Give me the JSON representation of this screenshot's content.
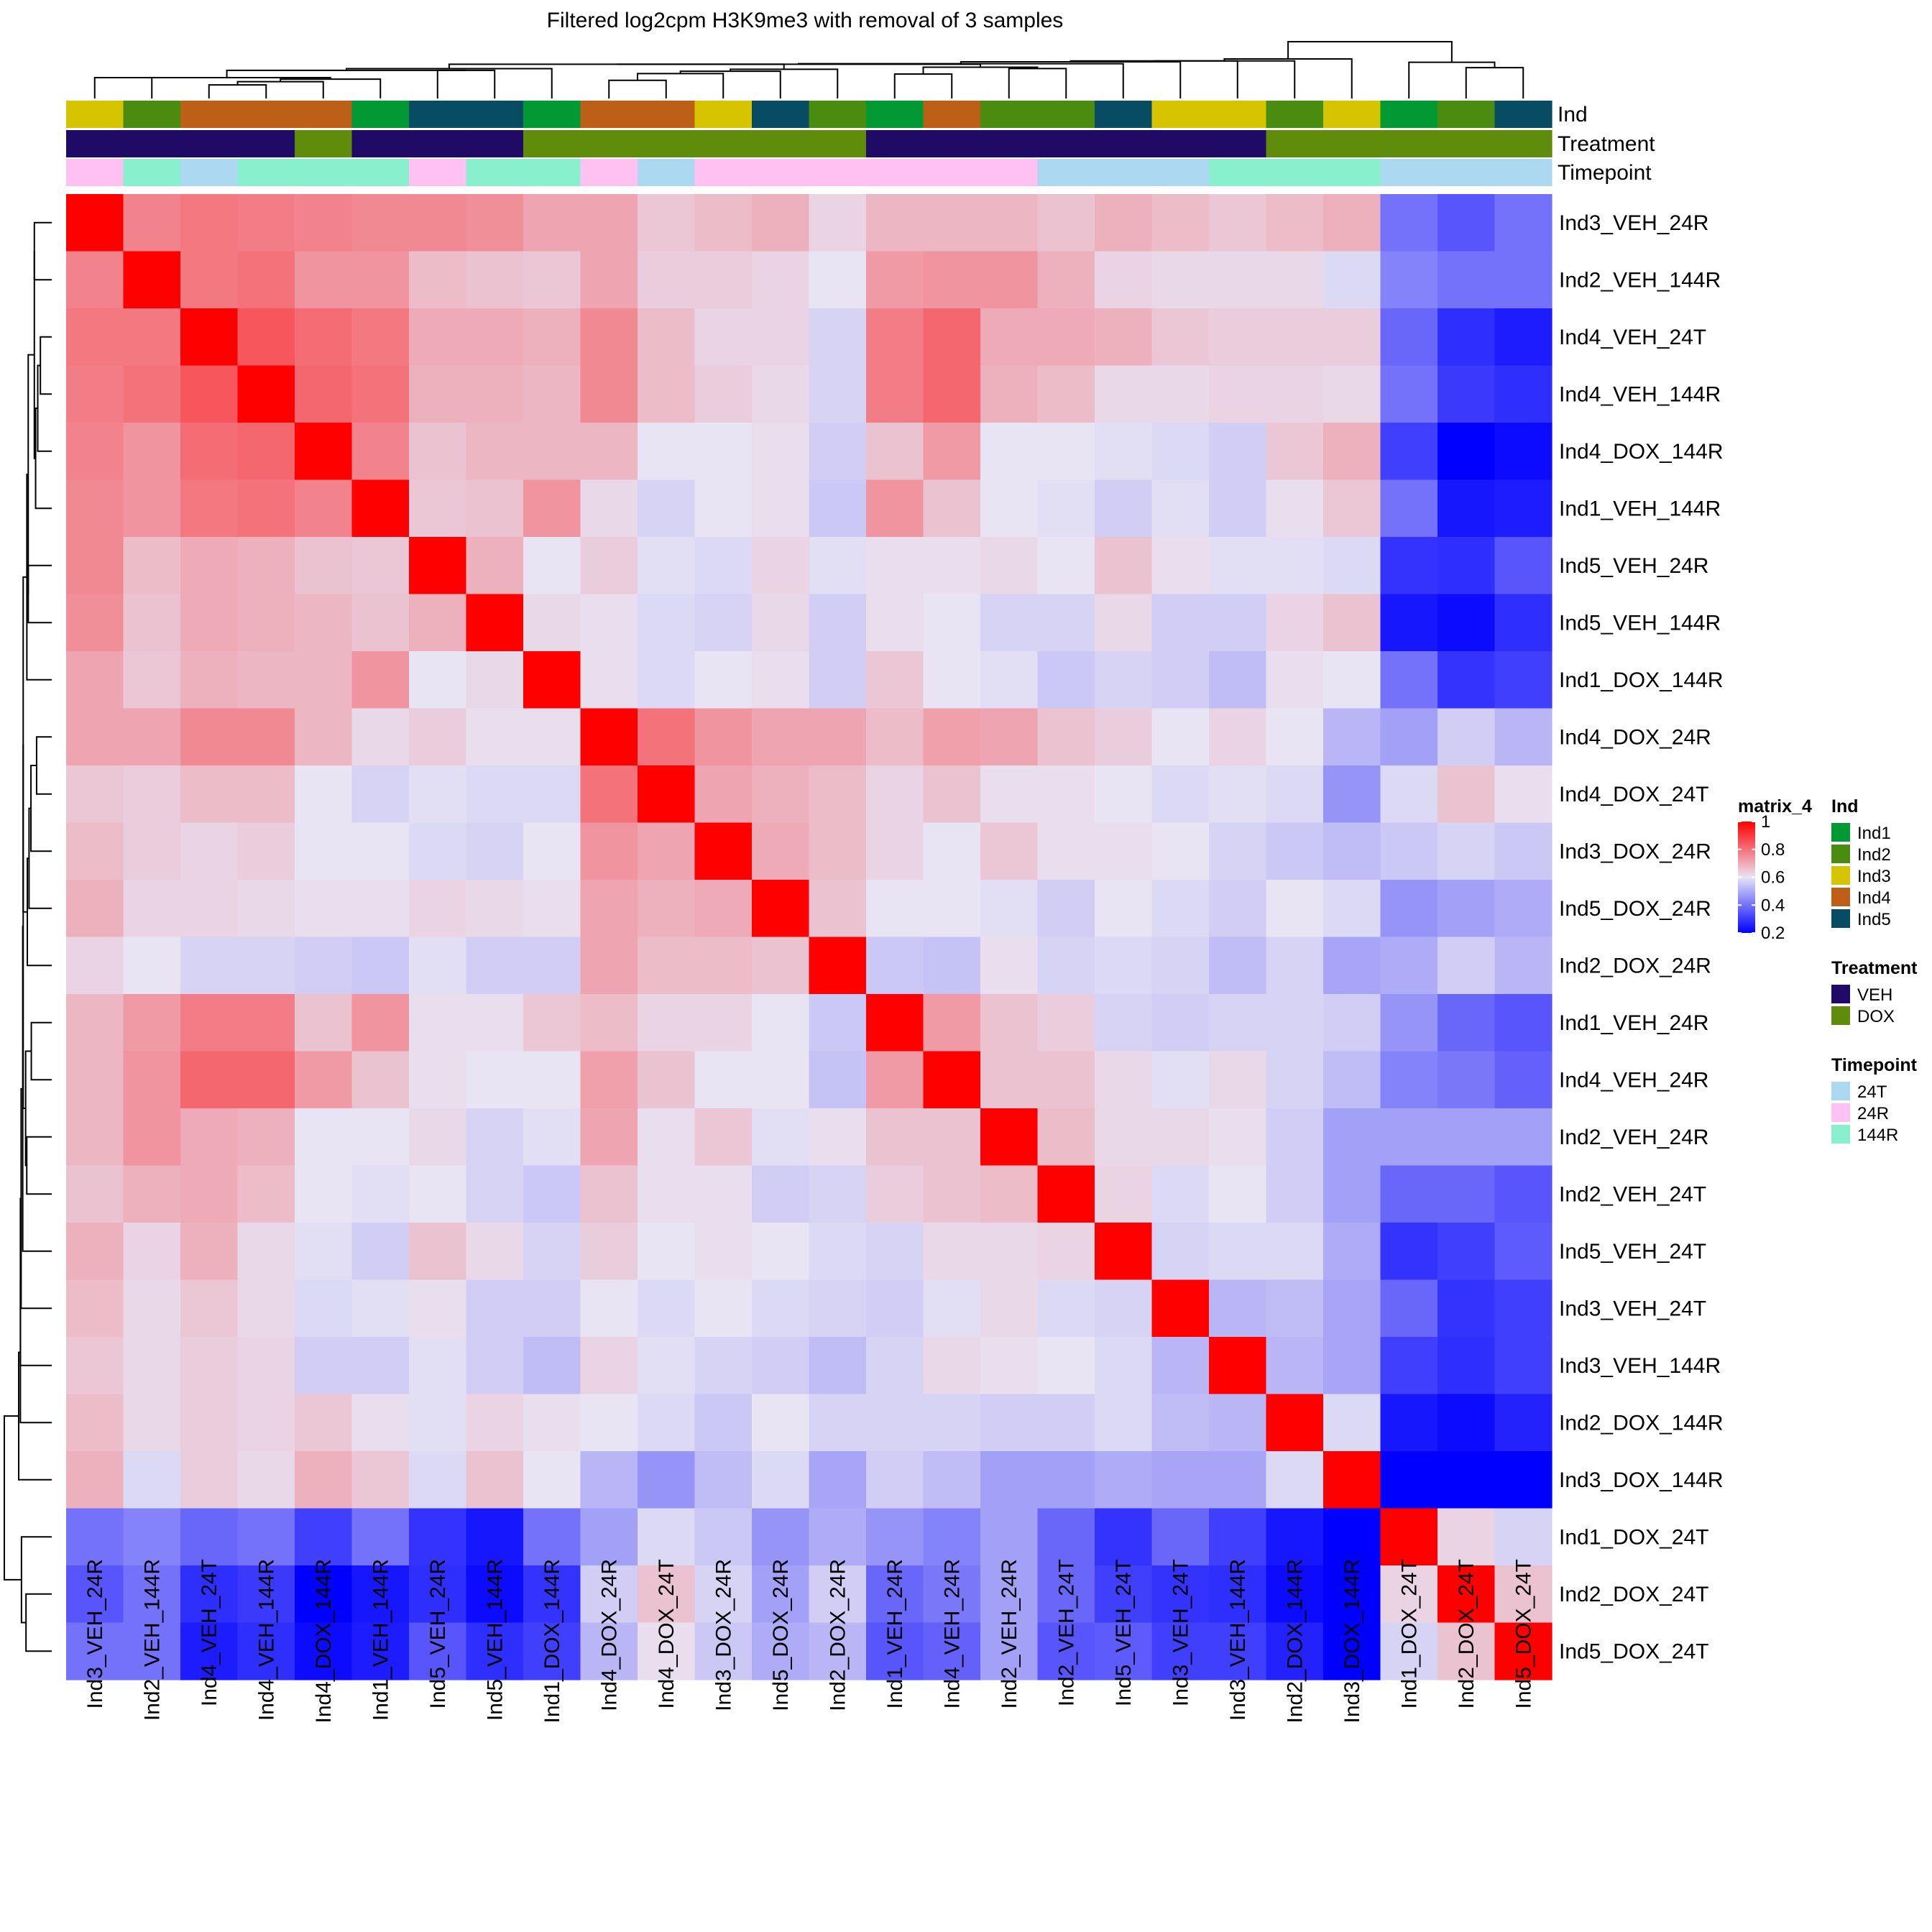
{
  "chart_data": {
    "type": "heatmap",
    "title": "Filtered log2cpm H3K9me3 with removal of 3 samples",
    "samples": [
      "Ind3_VEH_24R",
      "Ind2_VEH_144R",
      "Ind4_VEH_24T",
      "Ind4_VEH_144R",
      "Ind4_DOX_144R",
      "Ind1_VEH_144R",
      "Ind5_VEH_24R",
      "Ind5_VEH_144R",
      "Ind1_DOX_144R",
      "Ind4_DOX_24R",
      "Ind4_DOX_24T",
      "Ind3_DOX_24R",
      "Ind5_DOX_24R",
      "Ind2_DOX_24R",
      "Ind1_VEH_24R",
      "Ind4_VEH_24R",
      "Ind2_VEH_24R",
      "Ind2_VEH_24T",
      "Ind5_VEH_24T",
      "Ind3_VEH_24T",
      "Ind3_VEH_144R",
      "Ind2_DOX_144R",
      "Ind3_DOX_144R",
      "Ind1_DOX_24T",
      "Ind2_DOX_24T",
      "Ind5_DOX_24T"
    ],
    "values": [
      [
        1.0,
        0.77,
        0.79,
        0.78,
        0.77,
        0.76,
        0.76,
        0.75,
        0.71,
        0.71,
        0.65,
        0.67,
        0.69,
        0.63,
        0.68,
        0.68,
        0.68,
        0.66,
        0.69,
        0.67,
        0.65,
        0.67,
        0.69,
        0.4,
        0.35,
        0.4
      ],
      [
        0.77,
        1.0,
        0.79,
        0.8,
        0.74,
        0.74,
        0.67,
        0.66,
        0.65,
        0.71,
        0.64,
        0.64,
        0.63,
        0.6,
        0.73,
        0.74,
        0.74,
        0.69,
        0.63,
        0.62,
        0.62,
        0.62,
        0.58,
        0.43,
        0.4,
        0.4
      ],
      [
        0.79,
        0.79,
        1.0,
        0.85,
        0.81,
        0.79,
        0.7,
        0.7,
        0.69,
        0.76,
        0.67,
        0.63,
        0.63,
        0.57,
        0.78,
        0.82,
        0.7,
        0.7,
        0.69,
        0.65,
        0.64,
        0.64,
        0.64,
        0.38,
        0.28,
        0.25
      ],
      [
        0.78,
        0.8,
        0.85,
        1.0,
        0.82,
        0.8,
        0.69,
        0.69,
        0.68,
        0.76,
        0.67,
        0.64,
        0.62,
        0.57,
        0.78,
        0.82,
        0.69,
        0.67,
        0.62,
        0.62,
        0.63,
        0.63,
        0.62,
        0.4,
        0.3,
        0.28
      ],
      [
        0.77,
        0.74,
        0.81,
        0.82,
        1.0,
        0.77,
        0.66,
        0.68,
        0.68,
        0.68,
        0.6,
        0.6,
        0.61,
        0.56,
        0.66,
        0.73,
        0.6,
        0.6,
        0.59,
        0.58,
        0.56,
        0.65,
        0.69,
        0.31,
        0.2,
        0.22
      ],
      [
        0.76,
        0.74,
        0.79,
        0.8,
        0.77,
        1.0,
        0.65,
        0.66,
        0.74,
        0.62,
        0.57,
        0.6,
        0.61,
        0.55,
        0.74,
        0.66,
        0.6,
        0.59,
        0.56,
        0.59,
        0.56,
        0.61,
        0.65,
        0.4,
        0.24,
        0.25
      ],
      [
        0.76,
        0.67,
        0.7,
        0.69,
        0.66,
        0.65,
        1.0,
        0.69,
        0.6,
        0.64,
        0.59,
        0.58,
        0.63,
        0.59,
        0.61,
        0.61,
        0.62,
        0.6,
        0.66,
        0.61,
        0.59,
        0.59,
        0.58,
        0.29,
        0.28,
        0.35
      ],
      [
        0.75,
        0.66,
        0.7,
        0.69,
        0.68,
        0.66,
        0.69,
        1.0,
        0.62,
        0.61,
        0.58,
        0.57,
        0.62,
        0.56,
        0.61,
        0.6,
        0.57,
        0.57,
        0.62,
        0.56,
        0.56,
        0.63,
        0.66,
        0.24,
        0.22,
        0.28
      ],
      [
        0.71,
        0.65,
        0.69,
        0.68,
        0.68,
        0.74,
        0.6,
        0.62,
        1.0,
        0.61,
        0.58,
        0.6,
        0.61,
        0.56,
        0.65,
        0.6,
        0.59,
        0.55,
        0.57,
        0.56,
        0.53,
        0.61,
        0.6,
        0.4,
        0.29,
        0.31
      ],
      [
        0.71,
        0.71,
        0.76,
        0.76,
        0.68,
        0.62,
        0.64,
        0.61,
        0.61,
        1.0,
        0.8,
        0.74,
        0.71,
        0.71,
        0.67,
        0.72,
        0.71,
        0.66,
        0.64,
        0.6,
        0.63,
        0.6,
        0.52,
        0.48,
        0.56,
        0.52
      ],
      [
        0.65,
        0.64,
        0.67,
        0.67,
        0.6,
        0.57,
        0.59,
        0.58,
        0.58,
        0.8,
        1.0,
        0.71,
        0.69,
        0.67,
        0.63,
        0.66,
        0.61,
        0.61,
        0.6,
        0.58,
        0.59,
        0.58,
        0.46,
        0.58,
        0.66,
        0.61
      ],
      [
        0.67,
        0.64,
        0.63,
        0.64,
        0.6,
        0.6,
        0.58,
        0.57,
        0.6,
        0.74,
        0.71,
        1.0,
        0.7,
        0.67,
        0.63,
        0.6,
        0.65,
        0.61,
        0.61,
        0.6,
        0.57,
        0.55,
        0.53,
        0.55,
        0.57,
        0.55
      ],
      [
        0.69,
        0.63,
        0.63,
        0.62,
        0.61,
        0.61,
        0.63,
        0.62,
        0.61,
        0.71,
        0.69,
        0.7,
        1.0,
        0.66,
        0.6,
        0.6,
        0.59,
        0.56,
        0.6,
        0.58,
        0.56,
        0.6,
        0.58,
        0.46,
        0.48,
        0.5
      ],
      [
        0.63,
        0.6,
        0.57,
        0.57,
        0.56,
        0.55,
        0.59,
        0.56,
        0.56,
        0.71,
        0.67,
        0.67,
        0.66,
        1.0,
        0.55,
        0.54,
        0.61,
        0.57,
        0.58,
        0.57,
        0.53,
        0.57,
        0.49,
        0.5,
        0.56,
        0.52
      ],
      [
        0.68,
        0.73,
        0.78,
        0.78,
        0.66,
        0.74,
        0.61,
        0.61,
        0.65,
        0.67,
        0.63,
        0.63,
        0.6,
        0.55,
        1.0,
        0.73,
        0.66,
        0.64,
        0.57,
        0.56,
        0.57,
        0.57,
        0.56,
        0.46,
        0.38,
        0.35
      ],
      [
        0.68,
        0.74,
        0.82,
        0.82,
        0.73,
        0.66,
        0.61,
        0.6,
        0.6,
        0.72,
        0.66,
        0.6,
        0.6,
        0.54,
        0.73,
        1.0,
        0.66,
        0.66,
        0.62,
        0.59,
        0.62,
        0.57,
        0.53,
        0.43,
        0.41,
        0.37
      ],
      [
        0.68,
        0.74,
        0.7,
        0.69,
        0.6,
        0.6,
        0.62,
        0.57,
        0.59,
        0.71,
        0.61,
        0.65,
        0.59,
        0.61,
        0.66,
        0.66,
        1.0,
        0.67,
        0.62,
        0.62,
        0.61,
        0.56,
        0.48,
        0.48,
        0.48,
        0.48
      ],
      [
        0.66,
        0.69,
        0.7,
        0.67,
        0.6,
        0.59,
        0.6,
        0.57,
        0.55,
        0.66,
        0.61,
        0.61,
        0.56,
        0.57,
        0.64,
        0.66,
        0.67,
        1.0,
        0.63,
        0.58,
        0.6,
        0.56,
        0.48,
        0.38,
        0.38,
        0.35
      ],
      [
        0.69,
        0.63,
        0.69,
        0.62,
        0.59,
        0.56,
        0.66,
        0.62,
        0.57,
        0.64,
        0.6,
        0.61,
        0.6,
        0.58,
        0.57,
        0.62,
        0.62,
        0.63,
        1.0,
        0.57,
        0.58,
        0.58,
        0.5,
        0.29,
        0.31,
        0.36
      ],
      [
        0.67,
        0.62,
        0.65,
        0.62,
        0.58,
        0.59,
        0.61,
        0.56,
        0.56,
        0.6,
        0.58,
        0.6,
        0.58,
        0.57,
        0.56,
        0.59,
        0.62,
        0.58,
        0.57,
        1.0,
        0.52,
        0.53,
        0.49,
        0.38,
        0.29,
        0.31
      ],
      [
        0.65,
        0.62,
        0.64,
        0.63,
        0.56,
        0.56,
        0.59,
        0.56,
        0.53,
        0.63,
        0.59,
        0.57,
        0.56,
        0.53,
        0.57,
        0.62,
        0.61,
        0.6,
        0.58,
        0.52,
        1.0,
        0.52,
        0.49,
        0.31,
        0.28,
        0.31
      ],
      [
        0.67,
        0.62,
        0.64,
        0.63,
        0.65,
        0.61,
        0.59,
        0.63,
        0.61,
        0.6,
        0.58,
        0.55,
        0.6,
        0.57,
        0.57,
        0.57,
        0.56,
        0.56,
        0.58,
        0.53,
        0.52,
        1.0,
        0.58,
        0.24,
        0.22,
        0.26
      ],
      [
        0.69,
        0.58,
        0.64,
        0.62,
        0.69,
        0.65,
        0.58,
        0.66,
        0.6,
        0.52,
        0.46,
        0.53,
        0.58,
        0.49,
        0.56,
        0.53,
        0.48,
        0.48,
        0.5,
        0.49,
        0.49,
        0.58,
        1.0,
        0.2,
        0.2,
        0.2
      ],
      [
        0.4,
        0.43,
        0.38,
        0.4,
        0.31,
        0.4,
        0.29,
        0.24,
        0.4,
        0.48,
        0.58,
        0.55,
        0.46,
        0.5,
        0.46,
        0.43,
        0.48,
        0.38,
        0.29,
        0.38,
        0.31,
        0.24,
        0.2,
        1.0,
        0.63,
        0.57
      ],
      [
        0.35,
        0.4,
        0.28,
        0.3,
        0.2,
        0.24,
        0.28,
        0.22,
        0.29,
        0.56,
        0.66,
        0.57,
        0.48,
        0.56,
        0.38,
        0.41,
        0.48,
        0.38,
        0.31,
        0.29,
        0.28,
        0.22,
        0.2,
        0.63,
        1.0,
        0.66
      ],
      [
        0.4,
        0.4,
        0.25,
        0.28,
        0.22,
        0.25,
        0.35,
        0.28,
        0.31,
        0.52,
        0.61,
        0.55,
        0.5,
        0.52,
        0.35,
        0.37,
        0.48,
        0.35,
        0.36,
        0.31,
        0.31,
        0.26,
        0.2,
        0.57,
        0.66,
        1.0
      ]
    ],
    "annotations": {
      "Ind": [
        "Ind3",
        "Ind2",
        "Ind4",
        "Ind4",
        "Ind4",
        "Ind1",
        "Ind5",
        "Ind5",
        "Ind1",
        "Ind4",
        "Ind4",
        "Ind3",
        "Ind5",
        "Ind2",
        "Ind1",
        "Ind4",
        "Ind2",
        "Ind2",
        "Ind5",
        "Ind3",
        "Ind3",
        "Ind2",
        "Ind3",
        "Ind1",
        "Ind2",
        "Ind5"
      ],
      "Treatment": [
        "VEH",
        "VEH",
        "VEH",
        "VEH",
        "DOX",
        "VEH",
        "VEH",
        "VEH",
        "DOX",
        "DOX",
        "DOX",
        "DOX",
        "DOX",
        "DOX",
        "VEH",
        "VEH",
        "VEH",
        "VEH",
        "VEH",
        "VEH",
        "VEH",
        "DOX",
        "DOX",
        "DOX",
        "DOX",
        "DOX"
      ],
      "Timepoint": [
        "24R",
        "144R",
        "24T",
        "144R",
        "144R",
        "144R",
        "24R",
        "144R",
        "144R",
        "24R",
        "24T",
        "24R",
        "24R",
        "24R",
        "24R",
        "24R",
        "24R",
        "24T",
        "24T",
        "24T",
        "144R",
        "144R",
        "144R",
        "24T",
        "24T",
        "24T"
      ]
    },
    "annotation_tracks": [
      "Ind",
      "Treatment",
      "Timepoint"
    ],
    "color_scale": {
      "title": "matrix_4",
      "ticks": [
        1,
        0.8,
        0.6,
        0.4,
        0.2
      ],
      "stops": [
        {
          "value": 0.2,
          "color": "#0000ff"
        },
        {
          "value": 0.6,
          "color": "#e8e4f4"
        },
        {
          "value": 1.0,
          "color": "#ff0000"
        }
      ]
    },
    "legends": [
      {
        "title": "Ind",
        "items": [
          {
            "label": "Ind1",
            "color": "#009933"
          },
          {
            "label": "Ind2",
            "color": "#4a8c10"
          },
          {
            "label": "Ind3",
            "color": "#d6c400"
          },
          {
            "label": "Ind4",
            "color": "#bd5f16"
          },
          {
            "label": "Ind5",
            "color": "#084c64"
          }
        ]
      },
      {
        "title": "Treatment",
        "items": [
          {
            "label": "VEH",
            "color": "#1f0a66"
          },
          {
            "label": "DOX",
            "color": "#5f8c0a"
          }
        ]
      },
      {
        "title": "Timepoint",
        "items": [
          {
            "label": "24T",
            "color": "#add8f2"
          },
          {
            "label": "24R",
            "color": "#ffc0f2"
          },
          {
            "label": "144R",
            "color": "#88f0cc"
          }
        ]
      }
    ],
    "legend_placement": "right",
    "dendrograms": [
      "row",
      "column"
    ]
  }
}
